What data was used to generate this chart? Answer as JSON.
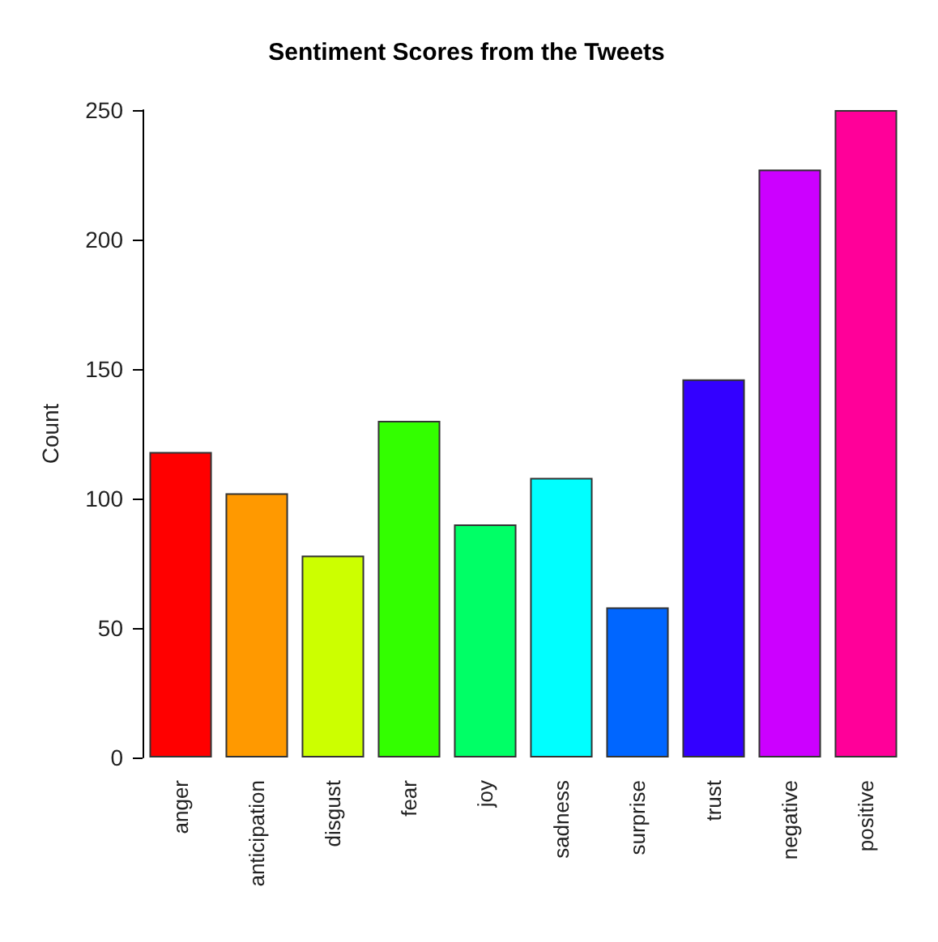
{
  "chart_data": {
    "type": "bar",
    "title": "Sentiment Scores from the Tweets",
    "ylabel": "Count",
    "categories": [
      "anger",
      "anticipation",
      "disgust",
      "fear",
      "joy",
      "sadness",
      "surprise",
      "trust",
      "negative",
      "positive"
    ],
    "values": [
      118,
      102,
      78,
      130,
      90,
      108,
      58,
      146,
      227,
      250
    ],
    "colors": [
      "#ff0000",
      "#ff9900",
      "#ccff00",
      "#33ff00",
      "#00ff66",
      "#00ffff",
      "#0066ff",
      "#3300ff",
      "#cc00ff",
      "#ff0099"
    ],
    "ylim": [
      0,
      250
    ],
    "yticks": [
      0,
      50,
      100,
      150,
      200,
      250
    ],
    "grid": false
  }
}
